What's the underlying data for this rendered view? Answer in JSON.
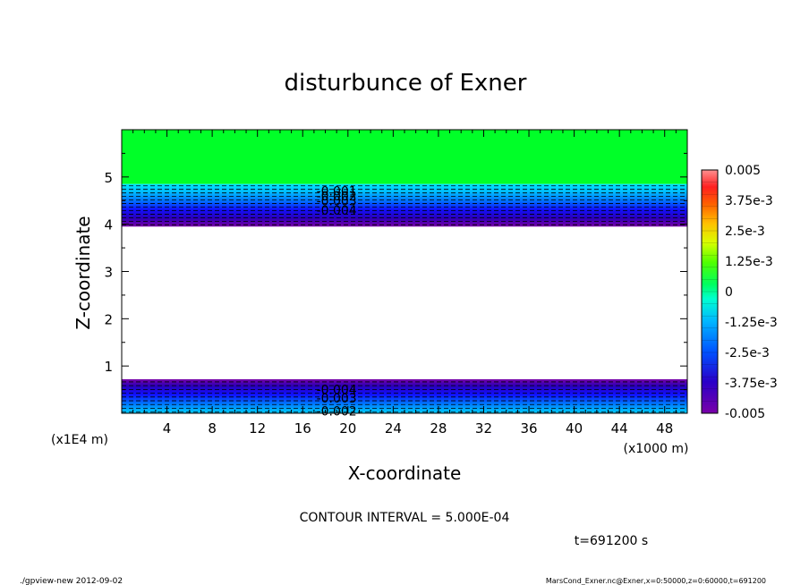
{
  "chart_data": {
    "type": "contour",
    "title": "disturbunce of Exner",
    "xlabel": "X-coordinate",
    "ylabel": "Z-coordinate",
    "x_unit": "(x1000 m)",
    "y_unit": "(x1E4 m)",
    "xlim": [
      0,
      50
    ],
    "ylim": [
      0,
      6
    ],
    "x_ticks": [
      "4",
      "8",
      "12",
      "16",
      "20",
      "24",
      "28",
      "32",
      "36",
      "40",
      "44",
      "48"
    ],
    "y_ticks": [
      "1",
      "2",
      "3",
      "4",
      "5"
    ],
    "contour_interval_label": "CONTOUR INTERVAL = 5.000E-04",
    "time_label": "t=691200 s",
    "colorbar": {
      "labels": [
        "0.005",
        "3.75e-3",
        "2.5e-3",
        "1.25e-3",
        "0",
        "-1.25e-3",
        "-2.5e-3",
        "-3.75e-3",
        "-0.005"
      ],
      "range": [
        -0.005,
        0.005
      ]
    },
    "upper_band": {
      "green_top_z": 6.0,
      "green_bottom_z": 4.85,
      "purple_bottom_z": 3.95
    },
    "lower_band": {
      "purple_top_z": 0.72,
      "bottom_z": 0.0
    },
    "contour_labels": [
      {
        "text": "-0.001",
        "x": 19,
        "z": 4.7
      },
      {
        "text": "-0.002",
        "x": 19,
        "z": 4.6
      },
      {
        "text": "-0.003",
        "x": 19,
        "z": 4.5
      },
      {
        "text": "-0.004",
        "x": 19,
        "z": 4.3
      },
      {
        "text": "-0.004",
        "x": 19,
        "z": 0.5
      },
      {
        "text": "-0.003",
        "x": 19,
        "z": 0.32
      },
      {
        "text": "-0.002",
        "x": 19,
        "z": 0.05
      }
    ]
  },
  "footer": {
    "left": "./gpview-new   2012-09-02",
    "right": "MarsCond_Exner.nc@Exner,x=0:50000,z=0:60000,t=691200"
  }
}
